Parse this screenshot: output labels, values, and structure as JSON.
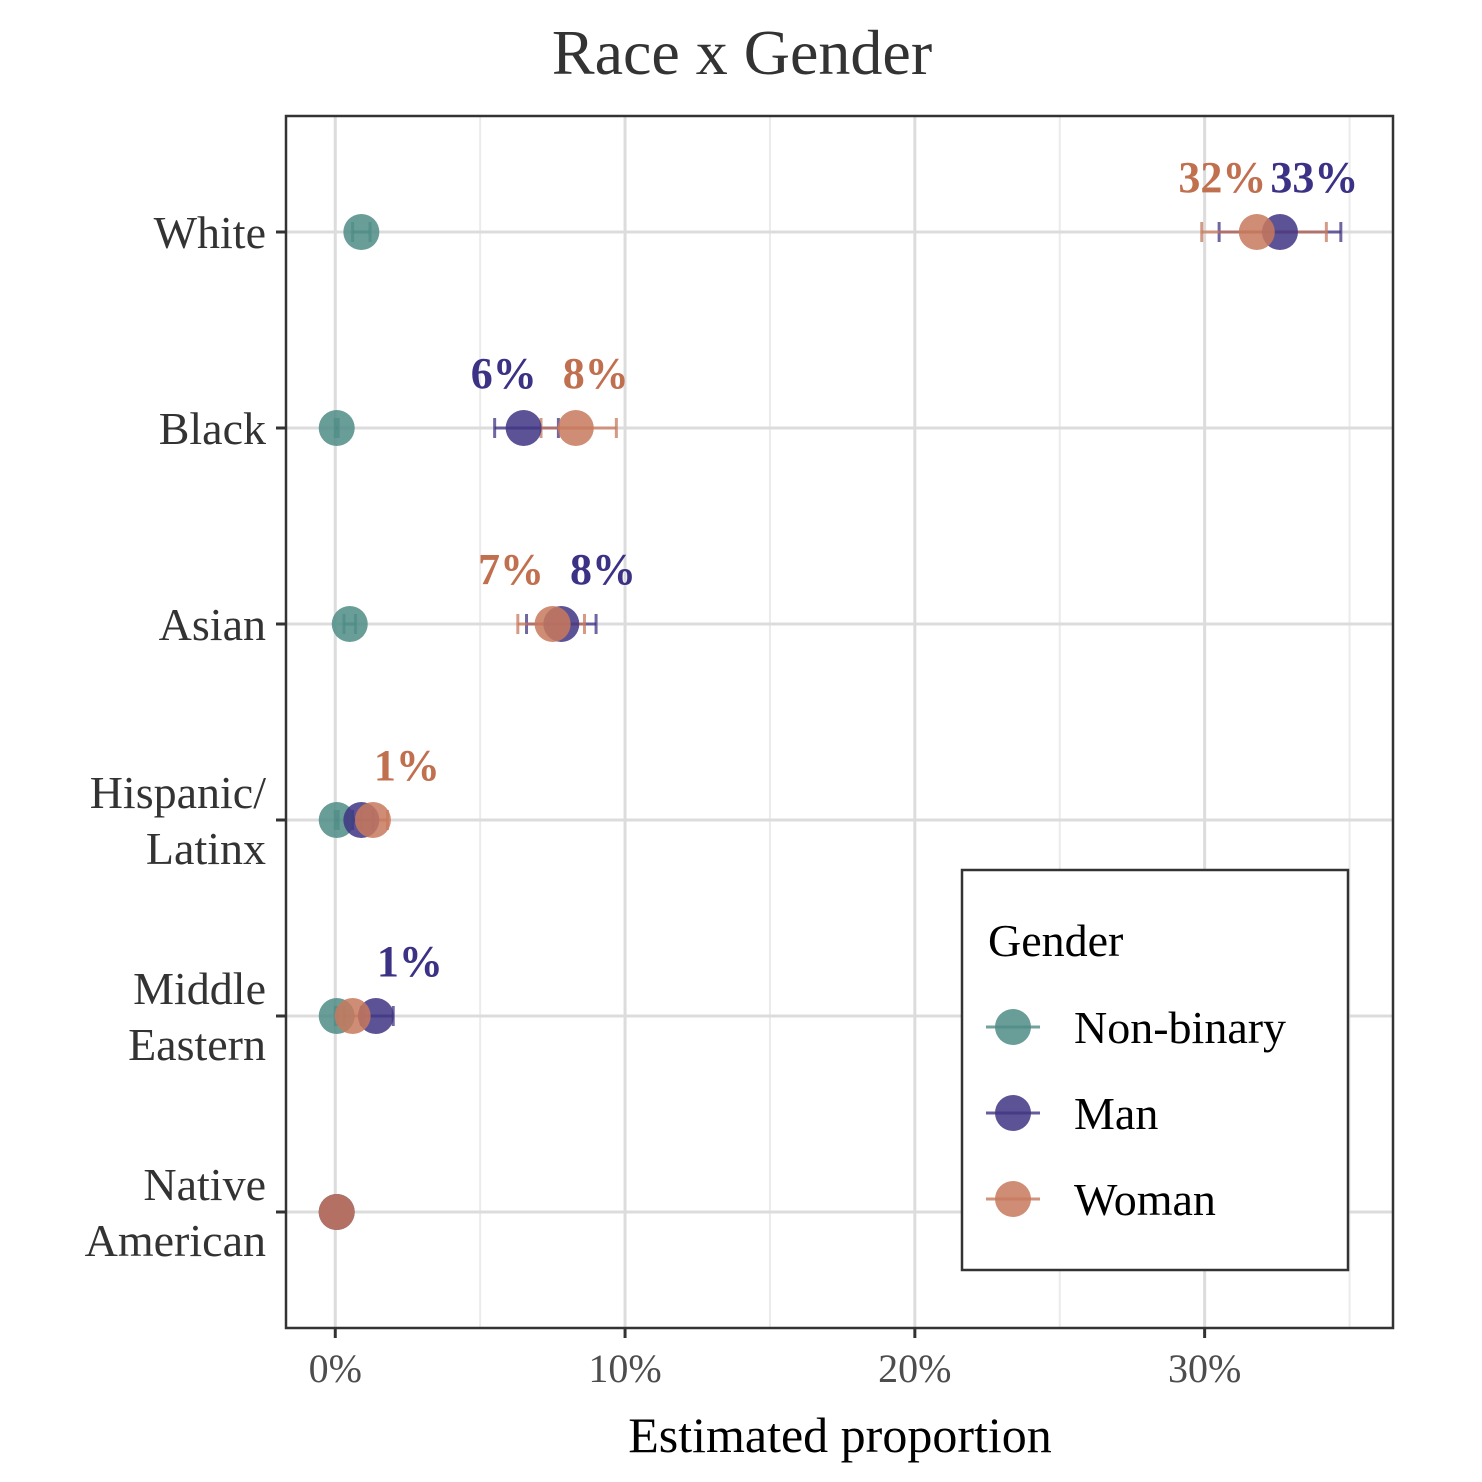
{
  "chart_data": {
    "type": "scatter",
    "title": "Race x Gender",
    "xlabel": "Estimated proportion",
    "ylabel": "",
    "xlim": [
      -0.017,
      0.365
    ],
    "x_ticks": [
      {
        "value": 0.0,
        "label": "0%"
      },
      {
        "value": 0.1,
        "label": "10%"
      },
      {
        "value": 0.2,
        "label": "20%"
      },
      {
        "value": 0.3,
        "label": "30%"
      }
    ],
    "x_minor_ticks": [
      0.05,
      0.15,
      0.25,
      0.35
    ],
    "categories": [
      {
        "lines": [
          "White"
        ]
      },
      {
        "lines": [
          "Black"
        ]
      },
      {
        "lines": [
          "Asian"
        ]
      },
      {
        "lines": [
          "Hispanic/",
          "Latinx"
        ]
      },
      {
        "lines": [
          "Middle",
          "Eastern"
        ]
      },
      {
        "lines": [
          "Native",
          "American"
        ]
      }
    ],
    "grid": true,
    "legend": {
      "title": "Gender",
      "position": "bottom-right"
    },
    "series": [
      {
        "name": "Non-binary",
        "color": "#4f8c86",
        "points": [
          {
            "x": 0.009,
            "lo": 0.006,
            "hi": 0.012,
            "label": ""
          },
          {
            "x": 0.0005,
            "lo": 0.0,
            "hi": 0.001,
            "label": ""
          },
          {
            "x": 0.005,
            "lo": 0.003,
            "hi": 0.007,
            "label": ""
          },
          {
            "x": 0.0005,
            "lo": 0.0,
            "hi": 0.001,
            "label": ""
          },
          {
            "x": 0.0005,
            "lo": 0.0,
            "hi": 0.001,
            "label": ""
          },
          {
            "x": 0.0005,
            "lo": 0.0,
            "hi": 0.001,
            "label": ""
          }
        ]
      },
      {
        "name": "Man",
        "color": "#3f3584",
        "label_color": "#3b3185",
        "points": [
          {
            "x": 0.326,
            "lo": 0.305,
            "hi": 0.347,
            "label": "33%"
          },
          {
            "x": 0.065,
            "lo": 0.055,
            "hi": 0.077,
            "label": "6%"
          },
          {
            "x": 0.078,
            "lo": 0.066,
            "hi": 0.09,
            "label": "8%"
          },
          {
            "x": 0.009,
            "lo": 0.006,
            "hi": 0.013,
            "label": ""
          },
          {
            "x": 0.014,
            "lo": 0.009,
            "hi": 0.02,
            "label": "1%"
          },
          {
            "x": 0.0005,
            "lo": 0.0,
            "hi": 0.001,
            "label": ""
          }
        ]
      },
      {
        "name": "Woman",
        "color": "#c8795d",
        "label_color": "#c0704f",
        "points": [
          {
            "x": 0.318,
            "lo": 0.299,
            "hi": 0.342,
            "label": "32%"
          },
          {
            "x": 0.083,
            "lo": 0.071,
            "hi": 0.097,
            "label": "8%"
          },
          {
            "x": 0.075,
            "lo": 0.063,
            "hi": 0.086,
            "label": "7%"
          },
          {
            "x": 0.013,
            "lo": 0.009,
            "hi": 0.018,
            "label": "1%"
          },
          {
            "x": 0.006,
            "lo": 0.003,
            "hi": 0.01,
            "label": ""
          },
          {
            "x": 0.0005,
            "lo": 0.0,
            "hi": 0.001,
            "label": ""
          }
        ]
      }
    ]
  }
}
